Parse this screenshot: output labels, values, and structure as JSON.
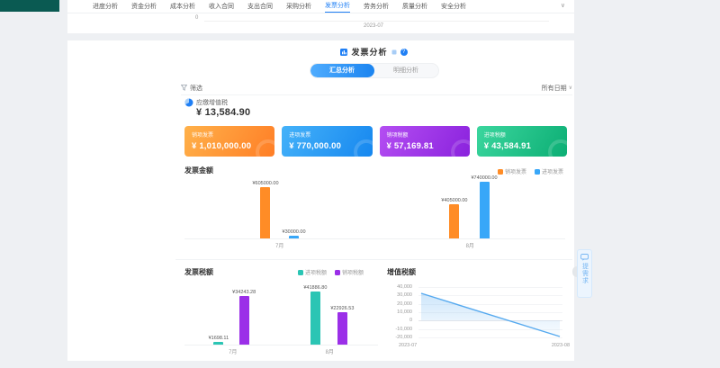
{
  "colors": {
    "accent": "#1f7ff5",
    "nav_active": "#1f7ff5",
    "page_bg": "#eef0f3",
    "corner_block": "#0a5a52"
  },
  "icons": {
    "chevron_down": "∨",
    "help": "?"
  },
  "nav": {
    "tabs": [
      "进度分析",
      "资金分析",
      "成本分析",
      "收入合同",
      "支出合同",
      "采购分析",
      "发票分析",
      "劳务分析",
      "质量分析",
      "安全分析"
    ],
    "active": "发票分析"
  },
  "top_partial_chart": {
    "ytick": "0",
    "xlabel": "2023-07"
  },
  "header": {
    "title": "发票分析"
  },
  "view_tabs": {
    "tabs": [
      "汇总分析",
      "明细分析"
    ],
    "active_index": 0
  },
  "toolbar": {
    "filter_label": "筛选",
    "date_filter": "所有日期"
  },
  "summary": {
    "label": "应缴增值税",
    "value": "¥ 13,584.90"
  },
  "cards": [
    {
      "label": "销项发票",
      "value": "¥ 1,010,000.00",
      "from": "#ffb14a",
      "to": "#ff7e26"
    },
    {
      "label": "进项发票",
      "value": "¥ 770,000.00",
      "from": "#45b2f9",
      "to": "#1687ef"
    },
    {
      "label": "销项税额",
      "value": "¥ 57,169.81",
      "from": "#b44ef2",
      "to": "#8a22dd"
    },
    {
      "label": "进项税额",
      "value": "¥ 43,584.91",
      "from": "#3bd69e",
      "to": "#0cae74"
    }
  ],
  "feedback_widget": {
    "label": "提需求"
  },
  "chart_data": [
    {
      "id": "invoice_amount",
      "type": "bar",
      "title": "发票金额",
      "categories": [
        "7月",
        "8月"
      ],
      "series": [
        {
          "name": "销项发票",
          "color": "#ff8c26",
          "values": [
            605000,
            405000
          ]
        },
        {
          "name": "进项发票",
          "color": "#38a7f8",
          "values": [
            30000,
            740000
          ]
        }
      ],
      "label_prefix": "¥",
      "ymax": 740000,
      "legend_position": "top-right",
      "grid": false
    },
    {
      "id": "invoice_tax",
      "type": "bar",
      "title": "发票税额",
      "categories": [
        "7月",
        "8月"
      ],
      "series": [
        {
          "name": "进项税额",
          "color": "#2bc5b4",
          "values": [
            1698.11,
            41886.8
          ]
        },
        {
          "name": "销项税额",
          "color": "#9b2fe8",
          "values": [
            34243.28,
            22926.53
          ]
        }
      ],
      "label_prefix": "¥",
      "ymax": 42000,
      "legend_position": "top",
      "grid": false
    },
    {
      "id": "vat_amount",
      "type": "line",
      "title": "增值税额",
      "x": [
        "2023-07",
        "2023-08"
      ],
      "values": [
        32545.17,
        -18960.27
      ],
      "color": "#55a9ef",
      "area": true,
      "ylim": [
        -20000,
        40000
      ],
      "yticks": [
        "40,000",
        "30,000",
        "20,000",
        "10,000",
        "0",
        "-10,000",
        "-20,000"
      ],
      "grid": true
    }
  ]
}
